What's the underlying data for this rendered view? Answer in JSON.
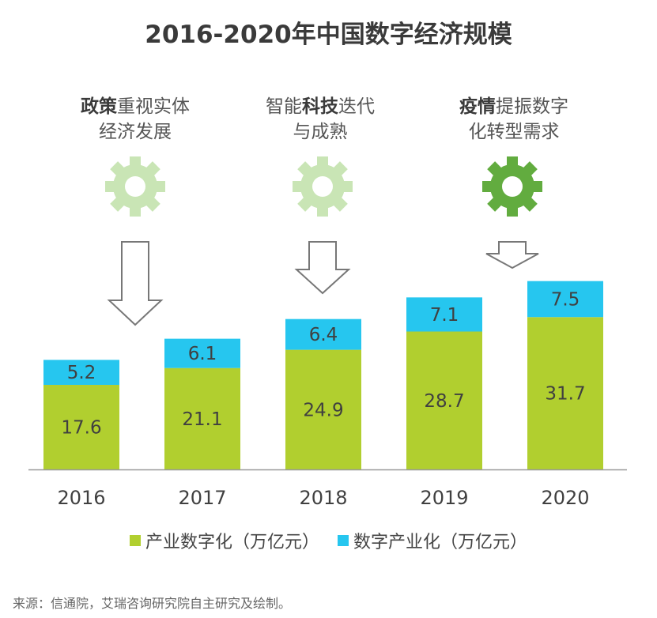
{
  "title": "2016-2020年中国数字经济规模",
  "colors": {
    "industrialization": "#b1cf2f",
    "digital_industry": "#26c6ef",
    "gear_light": "#c9e5b5",
    "gear_dark": "#62ac3f",
    "arrow_stroke": "#777777",
    "axis": "#999999"
  },
  "annotations": [
    {
      "bold": "政策",
      "rest": "重视实体",
      "line2": "经济发展",
      "gear": "gear-icon-light"
    },
    {
      "pre": "智能",
      "bold": "科技",
      "rest": "迭代",
      "line2": "与成熟",
      "gear": "gear-icon-light"
    },
    {
      "bold": "疫情",
      "rest": "提振数字",
      "line2": "化转型需求",
      "gear": "gear-icon-dark"
    }
  ],
  "chart_data": {
    "type": "bar",
    "stacked": true,
    "categories": [
      "2016",
      "2017",
      "2018",
      "2019",
      "2020"
    ],
    "series": [
      {
        "name": "产业数字化（万亿元）",
        "values": [
          17.6,
          21.1,
          24.9,
          28.7,
          31.7
        ]
      },
      {
        "name": "数字产业化（万亿元）",
        "values": [
          5.2,
          6.1,
          6.4,
          7.1,
          7.5
        ]
      }
    ],
    "legend_position": "bottom",
    "grid": false
  },
  "source": "来源：信通院，艾瑞咨询研究院自主研究及绘制。"
}
